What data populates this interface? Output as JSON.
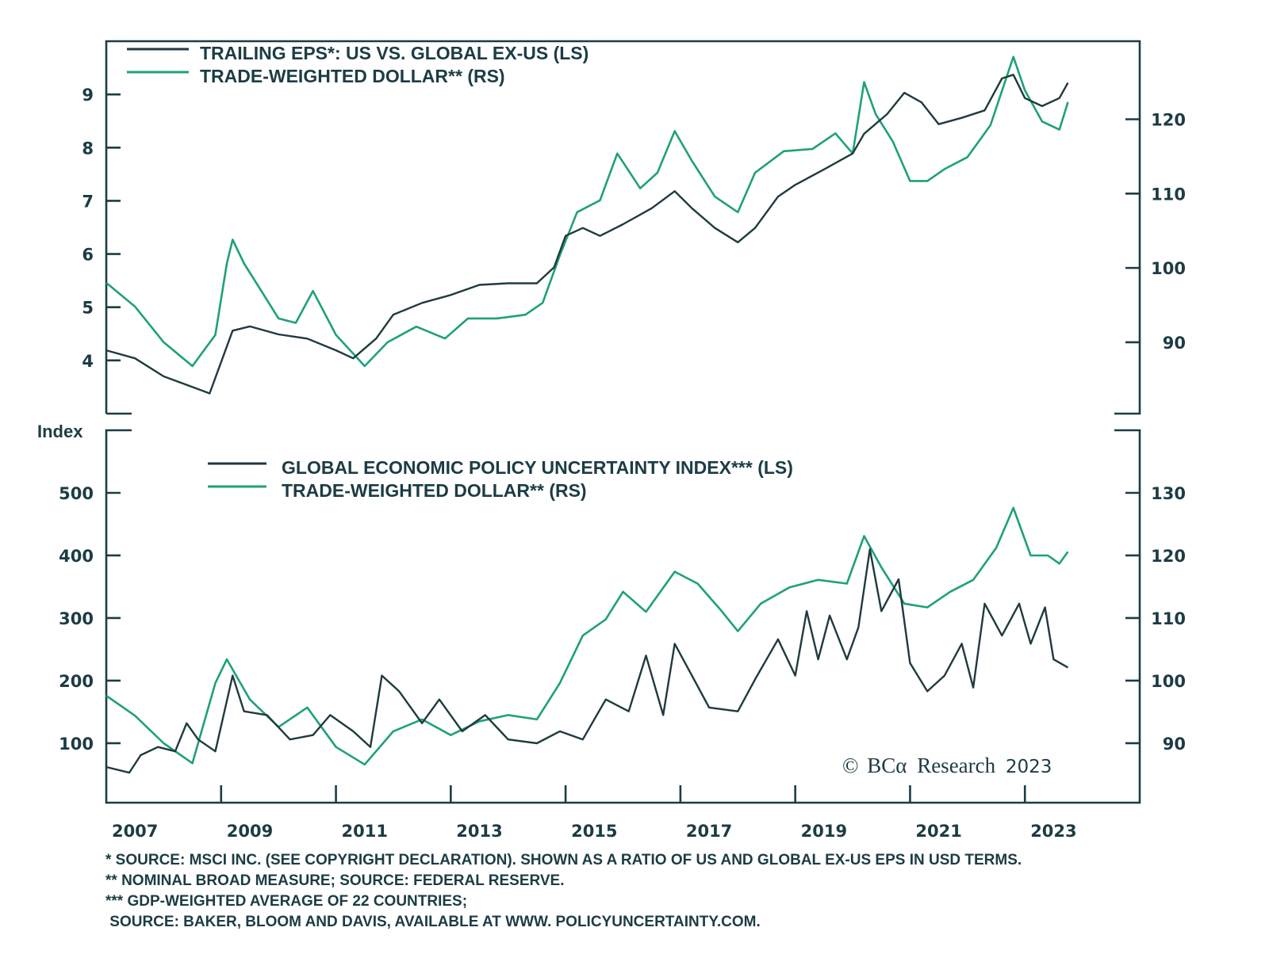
{
  "chart_data": [
    {
      "type": "line",
      "panel": "top",
      "legend": [
        {
          "label": "TRAILING EPS*: US VS. GLOBAL EX-US (LS)",
          "color": "#1f3a40",
          "axis": "left"
        },
        {
          "label": "TRADE-WEIGHTED DOLLAR** (RS)",
          "color": "#1fa07b",
          "axis": "right"
        }
      ],
      "legend_position": "top-left",
      "left_axis": {
        "ticks": [
          4,
          5,
          6,
          7,
          8,
          9
        ],
        "tick_labels": [
          "4",
          "5",
          "6",
          "7",
          "8",
          "9"
        ],
        "range": [
          3.0,
          10.0
        ]
      },
      "right_axis": {
        "ticks": [
          90,
          100,
          110,
          120
        ],
        "tick_labels": [
          "90",
          "100",
          "110",
          "120"
        ],
        "range": [
          80.4,
          130.5
        ]
      },
      "grid": false,
      "series": [
        {
          "name": "Trailing EPS: US vs. Global ex-US",
          "axis": "left",
          "x": [
            2007.0,
            2007.5,
            2008.0,
            2008.5,
            2008.8,
            2009.0,
            2009.2,
            2009.5,
            2010.0,
            2010.5,
            2011.0,
            2011.3,
            2011.7,
            2012.0,
            2012.5,
            2013.0,
            2013.5,
            2014.0,
            2014.5,
            2014.8,
            2015.0,
            2015.3,
            2015.6,
            2016.0,
            2016.5,
            2016.9,
            2017.2,
            2017.6,
            2018.0,
            2018.3,
            2018.7,
            2019.0,
            2019.5,
            2020.0,
            2020.2,
            2020.6,
            2020.9,
            2021.2,
            2021.5,
            2021.9,
            2022.3,
            2022.6,
            2022.8,
            2023.0,
            2023.3,
            2023.6,
            2023.75
          ],
          "values": [
            4.19,
            4.04,
            3.7,
            3.5,
            3.38,
            3.97,
            4.56,
            4.64,
            4.49,
            4.41,
            4.19,
            4.04,
            4.41,
            4.86,
            5.08,
            5.23,
            5.42,
            5.45,
            5.45,
            5.75,
            6.34,
            6.49,
            6.34,
            6.56,
            6.86,
            7.18,
            6.86,
            6.49,
            6.22,
            6.49,
            7.08,
            7.3,
            7.59,
            7.89,
            8.26,
            8.63,
            9.03,
            8.85,
            8.44,
            8.56,
            8.7,
            9.3,
            9.37,
            8.93,
            8.78,
            8.93,
            9.22
          ]
        },
        {
          "name": "Trade-Weighted Dollar",
          "axis": "right",
          "x": [
            2007.0,
            2007.5,
            2008.0,
            2008.5,
            2008.9,
            2009.1,
            2009.2,
            2009.4,
            2009.7,
            2010.0,
            2010.3,
            2010.6,
            2011.0,
            2011.5,
            2011.9,
            2012.4,
            2012.9,
            2013.3,
            2013.8,
            2014.3,
            2014.6,
            2014.9,
            2015.2,
            2015.6,
            2015.9,
            2016.3,
            2016.6,
            2016.9,
            2017.2,
            2017.6,
            2018.0,
            2018.3,
            2018.8,
            2019.3,
            2019.7,
            2020.0,
            2020.2,
            2020.4,
            2020.7,
            2021.0,
            2021.3,
            2021.6,
            2022.0,
            2022.4,
            2022.8,
            2023.0,
            2023.3,
            2023.6,
            2023.75
          ],
          "values": [
            98.0,
            94.8,
            90.0,
            86.8,
            91.0,
            100.6,
            103.8,
            100.6,
            96.9,
            93.2,
            92.6,
            96.9,
            91.0,
            86.8,
            90.0,
            92.1,
            90.5,
            93.2,
            93.2,
            93.7,
            95.3,
            101.7,
            107.5,
            109.1,
            115.4,
            110.7,
            112.8,
            118.4,
            114.4,
            109.6,
            107.5,
            112.8,
            115.7,
            116.0,
            118.1,
            115.4,
            125.0,
            120.7,
            117.0,
            111.7,
            111.7,
            113.3,
            114.9,
            119.2,
            128.4,
            123.9,
            119.7,
            118.6,
            122.3
          ]
        }
      ]
    },
    {
      "type": "line",
      "panel": "bottom",
      "legend": [
        {
          "label": "GLOBAL ECONOMIC POLICY UNCERTAINTY INDEX*** (LS)",
          "color": "#1f3a40",
          "axis": "left"
        },
        {
          "label": "TRADE-WEIGHTED DOLLAR** (RS)",
          "color": "#1fa07b",
          "axis": "right"
        }
      ],
      "legend_position": "top-center",
      "ylabel_left": "Index",
      "left_axis": {
        "ticks": [
          100,
          200,
          300,
          400,
          500
        ],
        "tick_labels": [
          "100",
          "200",
          "300",
          "400",
          "500"
        ],
        "range": [
          5,
          600
        ]
      },
      "right_axis": {
        "ticks": [
          90,
          100,
          110,
          120,
          130
        ],
        "tick_labels": [
          "90",
          "100",
          "110",
          "120",
          "130"
        ],
        "range": [
          80.5,
          140
        ]
      },
      "grid": false,
      "series": [
        {
          "name": "Global Economic Policy Uncertainty Index",
          "axis": "left",
          "x": [
            2007.0,
            2007.4,
            2007.6,
            2007.9,
            2008.2,
            2008.4,
            2008.6,
            2008.9,
            2009.2,
            2009.4,
            2009.8,
            2010.2,
            2010.6,
            2010.9,
            2011.3,
            2011.6,
            2011.8,
            2012.1,
            2012.5,
            2012.8,
            2013.2,
            2013.6,
            2014.0,
            2014.5,
            2014.9,
            2015.3,
            2015.7,
            2016.1,
            2016.4,
            2016.7,
            2016.9,
            2017.2,
            2017.5,
            2018.0,
            2018.3,
            2018.7,
            2019.0,
            2019.2,
            2019.4,
            2019.6,
            2019.9,
            2020.1,
            2020.3,
            2020.5,
            2020.8,
            2021.0,
            2021.3,
            2021.6,
            2021.9,
            2022.1,
            2022.3,
            2022.6,
            2022.9,
            2023.1,
            2023.35,
            2023.5,
            2023.75
          ],
          "values": [
            62,
            53,
            81,
            94,
            87,
            132,
            106,
            87,
            208,
            151,
            145,
            106,
            113,
            145,
            119,
            94,
            208,
            183,
            132,
            170,
            119,
            145,
            106,
            100,
            119,
            106,
            170,
            151,
            240,
            145,
            259,
            208,
            157,
            151,
            202,
            266,
            208,
            311,
            234,
            304,
            234,
            285,
            410,
            311,
            362,
            228,
            183,
            208,
            259,
            189,
            323,
            272,
            323,
            259,
            317,
            234,
            221
          ]
        },
        {
          "name": "Trade-Weighted Dollar",
          "axis": "right",
          "x": [
            2007.0,
            2007.5,
            2008.0,
            2008.5,
            2008.9,
            2009.1,
            2009.5,
            2010.0,
            2010.5,
            2011.0,
            2011.5,
            2012.0,
            2012.5,
            2013.0,
            2013.5,
            2014.0,
            2014.5,
            2014.9,
            2015.3,
            2015.7,
            2016.0,
            2016.4,
            2016.9,
            2017.3,
            2017.7,
            2018.0,
            2018.4,
            2018.9,
            2019.4,
            2019.9,
            2020.2,
            2020.5,
            2020.9,
            2021.3,
            2021.7,
            2022.1,
            2022.5,
            2022.8,
            2023.1,
            2023.4,
            2023.6,
            2023.75
          ],
          "values": [
            97.6,
            94.4,
            90.0,
            86.8,
            99.6,
            103.4,
            97.0,
            92.6,
            95.7,
            89.4,
            86.6,
            91.9,
            93.8,
            91.3,
            93.5,
            94.5,
            93.8,
            99.6,
            107.2,
            109.8,
            114.2,
            111.0,
            117.4,
            115.5,
            111.3,
            107.9,
            112.3,
            114.9,
            116.1,
            115.5,
            123.1,
            118.1,
            112.3,
            111.7,
            114.2,
            116.1,
            121.2,
            127.6,
            120.0,
            120.0,
            118.7,
            120.6
          ]
        }
      ]
    }
  ],
  "x_axis": {
    "range": [
      2007,
      2025
    ],
    "ticks": [
      2009,
      2011,
      2013,
      2015,
      2017,
      2019,
      2021,
      2023
    ],
    "labels": [
      "2007",
      "2009",
      "2011",
      "2013",
      "2015",
      "2017",
      "2019",
      "2021",
      "2023"
    ],
    "label_positions": [
      2007.5,
      2009.5,
      2011.5,
      2013.5,
      2015.5,
      2017.5,
      2019.5,
      2021.5,
      2023.5
    ]
  },
  "copyright": {
    "symbol": "©",
    "brand": "BCα",
    "text": "Research",
    "year": "2023"
  },
  "footnotes": [
    "* SOURCE: MSCI INC. (SEE COPYRIGHT DECLARATION). SHOWN AS A RATIO OF US AND GLOBAL EX-US EPS IN USD TERMS.",
    "** NOMINAL BROAD MEASURE; SOURCE: FEDERAL RESERVE.",
    "*** GDP-WEIGHTED AVERAGE OF 22 COUNTRIES;",
    " SOURCE: BAKER, BLOOM AND DAVIS, AVAILABLE AT WWW. POLICYUNCERTAINTY.COM."
  ],
  "colors": {
    "dark": "#1f3a40",
    "green": "#1fa07b",
    "axis": "#1c3c44"
  }
}
